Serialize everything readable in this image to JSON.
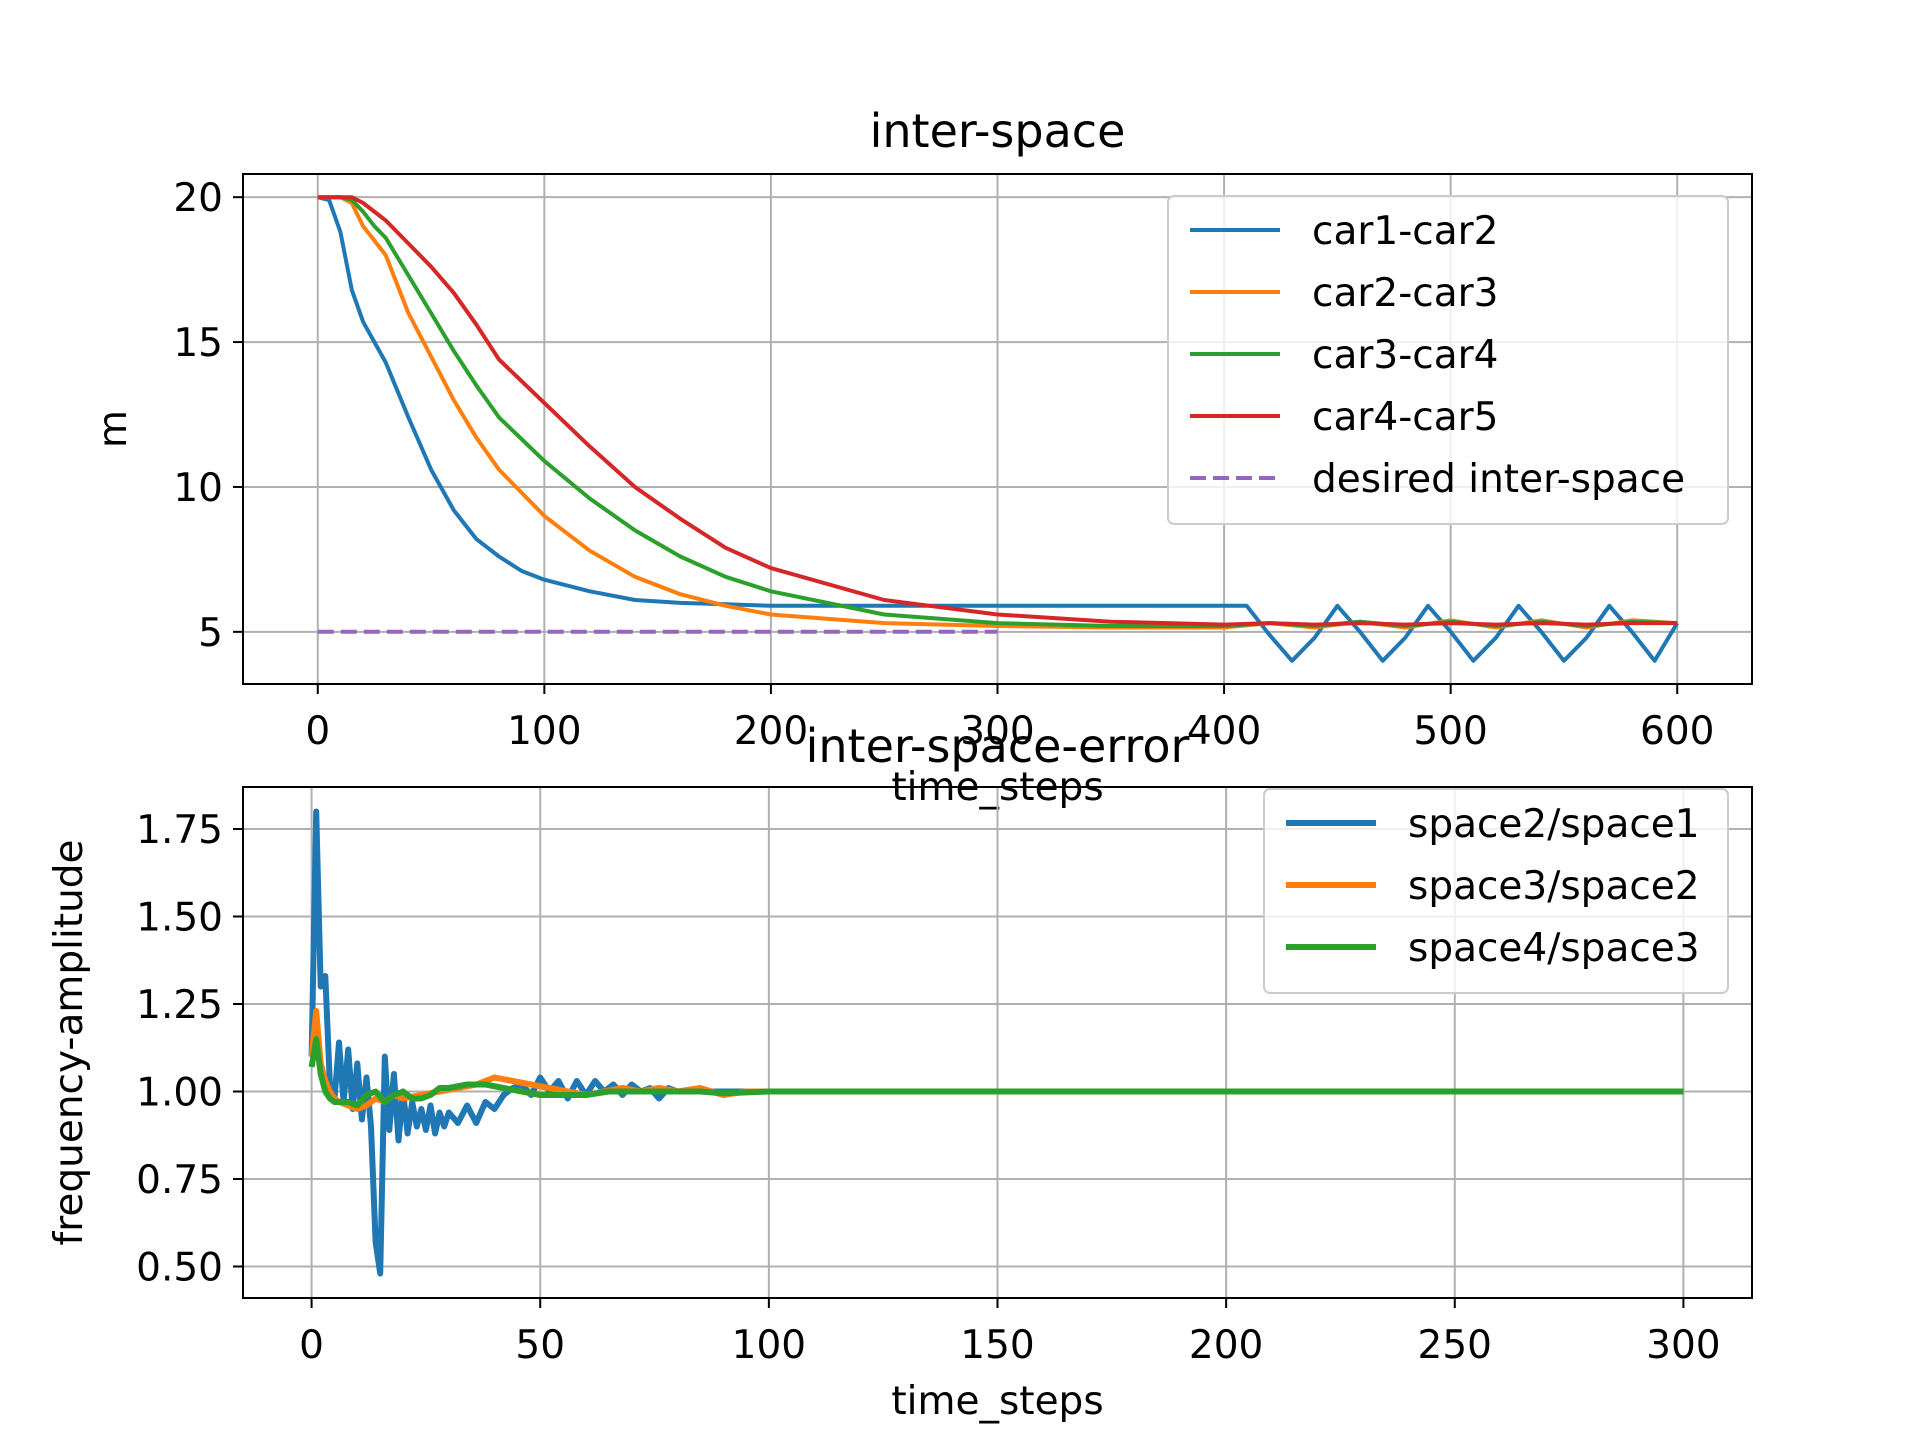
{
  "chart_data": [
    {
      "type": "line",
      "title": "inter-space",
      "xlabel": "time_steps",
      "ylabel": "m",
      "xlim": [
        -33,
        633
      ],
      "ylim": [
        3.2,
        20.8
      ],
      "xticks": [
        0,
        100,
        200,
        300,
        400,
        500,
        600
      ],
      "yticks": [
        5,
        10,
        15,
        20
      ],
      "grid": true,
      "legend_position": "top-right",
      "colors": {
        "car1-car2": "#1f77b4",
        "car2-car3": "#ff7f0e",
        "car3-car4": "#2ca02c",
        "car4-car5": "#d62728",
        "desired inter-space": "#9467bd"
      },
      "series": [
        {
          "name": "car1-car2",
          "color": "#1f77b4",
          "x": [
            0,
            5,
            10,
            15,
            20,
            30,
            40,
            50,
            60,
            70,
            80,
            90,
            100,
            120,
            140,
            160,
            180,
            200,
            250,
            300,
            350,
            400,
            410,
            420,
            430,
            440,
            450,
            460,
            470,
            480,
            490,
            500,
            510,
            520,
            530,
            540,
            550,
            560,
            570,
            580,
            590,
            600
          ],
          "y": [
            20,
            19.9,
            18.8,
            16.8,
            15.7,
            14.3,
            12.4,
            10.6,
            9.2,
            8.2,
            7.6,
            7.1,
            6.8,
            6.4,
            6.1,
            6.0,
            5.95,
            5.9,
            5.9,
            5.9,
            5.9,
            5.9,
            5.9,
            4.9,
            4.0,
            4.8,
            5.9,
            5.0,
            4.0,
            4.8,
            5.9,
            5.0,
            4.0,
            4.8,
            5.9,
            5.0,
            4.0,
            4.8,
            5.9,
            5.0,
            4.0,
            5.3
          ]
        },
        {
          "name": "car2-car3",
          "color": "#ff7f0e",
          "x": [
            0,
            10,
            15,
            20,
            25,
            30,
            40,
            50,
            60,
            70,
            80,
            100,
            120,
            140,
            160,
            180,
            200,
            250,
            300,
            350,
            400,
            420,
            440,
            460,
            480,
            500,
            520,
            540,
            560,
            580,
            600
          ],
          "y": [
            20,
            20,
            19.8,
            19.0,
            18.5,
            18.0,
            16.0,
            14.5,
            13.0,
            11.7,
            10.6,
            9.0,
            7.8,
            6.9,
            6.3,
            5.9,
            5.6,
            5.3,
            5.2,
            5.15,
            5.15,
            5.3,
            5.15,
            5.35,
            5.15,
            5.4,
            5.15,
            5.4,
            5.15,
            5.4,
            5.3
          ]
        },
        {
          "name": "car3-car4",
          "color": "#2ca02c",
          "x": [
            0,
            10,
            15,
            20,
            25,
            30,
            40,
            50,
            60,
            70,
            80,
            100,
            120,
            140,
            160,
            180,
            200,
            250,
            300,
            350,
            400,
            420,
            440,
            460,
            480,
            500,
            520,
            540,
            560,
            580,
            600
          ],
          "y": [
            20,
            20,
            19.9,
            19.5,
            19.0,
            18.6,
            17.3,
            16.0,
            14.7,
            13.5,
            12.4,
            10.9,
            9.6,
            8.5,
            7.6,
            6.9,
            6.4,
            5.6,
            5.3,
            5.2,
            5.2,
            5.3,
            5.2,
            5.35,
            5.2,
            5.35,
            5.2,
            5.35,
            5.2,
            5.35,
            5.3
          ]
        },
        {
          "name": "car4-car5",
          "color": "#d62728",
          "x": [
            0,
            10,
            15,
            20,
            30,
            40,
            50,
            60,
            70,
            80,
            100,
            120,
            140,
            160,
            180,
            200,
            250,
            300,
            350,
            400,
            420,
            440,
            460,
            480,
            500,
            520,
            540,
            560,
            580,
            600
          ],
          "y": [
            20,
            20,
            20,
            19.8,
            19.2,
            18.4,
            17.6,
            16.7,
            15.6,
            14.4,
            12.9,
            11.4,
            10.0,
            8.9,
            7.9,
            7.2,
            6.1,
            5.6,
            5.35,
            5.25,
            5.3,
            5.25,
            5.3,
            5.25,
            5.3,
            5.25,
            5.3,
            5.25,
            5.3,
            5.3
          ]
        },
        {
          "name": "desired inter-space",
          "color": "#9467bd",
          "style": "dashed",
          "x": [
            0,
            300
          ],
          "y": [
            5,
            5
          ]
        }
      ]
    },
    {
      "type": "line",
      "title": "inter-space-error",
      "xlabel": "time_steps",
      "ylabel": "frequency-amplitude",
      "xlim": [
        -15,
        315
      ],
      "ylim": [
        0.41,
        1.87
      ],
      "xticks": [
        0,
        50,
        100,
        150,
        200,
        250,
        300
      ],
      "yticks": [
        "0.50",
        "0.75",
        "1.00",
        "1.25",
        "1.50",
        "1.75"
      ],
      "grid": true,
      "legend_position": "top-right",
      "colors": {
        "space2/space1": "#1f77b4",
        "space3/space2": "#ff7f0e",
        "space4/space3": "#2ca02c"
      },
      "series": [
        {
          "name": "space2/space1",
          "color": "#1f77b4",
          "x": [
            0,
            1,
            2,
            3,
            4,
            5,
            6,
            7,
            8,
            9,
            10,
            11,
            12,
            13,
            14,
            15,
            16,
            17,
            18,
            19,
            20,
            21,
            22,
            23,
            24,
            25,
            26,
            27,
            28,
            29,
            30,
            32,
            34,
            36,
            38,
            40,
            42,
            44,
            46,
            48,
            50,
            52,
            54,
            56,
            58,
            60,
            62,
            64,
            66,
            68,
            70,
            72,
            74,
            76,
            78,
            80,
            85,
            90,
            95,
            100,
            110,
            120,
            130,
            300
          ],
          "y": [
            1.1,
            1.8,
            1.3,
            1.33,
            1.02,
            0.98,
            1.14,
            0.97,
            1.12,
            0.95,
            1.08,
            0.92,
            1.04,
            0.9,
            0.57,
            0.48,
            1.1,
            0.89,
            1.05,
            0.86,
            1.0,
            0.88,
            0.97,
            0.9,
            0.95,
            0.89,
            0.96,
            0.88,
            0.94,
            0.9,
            0.94,
            0.91,
            0.96,
            0.91,
            0.97,
            0.95,
            0.99,
            1.01,
            1.02,
            0.99,
            1.04,
            1.0,
            1.03,
            0.98,
            1.03,
            0.99,
            1.03,
            1.0,
            1.02,
            0.99,
            1.02,
            1.0,
            1.01,
            0.98,
            1.01,
            1.0,
            1.0,
            1.0,
            1.0,
            1.0,
            1.0,
            1.0,
            1.0,
            1.0
          ]
        },
        {
          "name": "space3/space2",
          "color": "#ff7f0e",
          "x": [
            0,
            1,
            2,
            3,
            4,
            5,
            6,
            8,
            10,
            12,
            14,
            16,
            18,
            20,
            24,
            28,
            32,
            36,
            40,
            44,
            48,
            52,
            56,
            60,
            64,
            68,
            72,
            76,
            80,
            85,
            90,
            95,
            100,
            110,
            120,
            300
          ],
          "y": [
            1.1,
            1.23,
            1.08,
            1.03,
            1.0,
            0.98,
            0.97,
            0.96,
            0.95,
            0.96,
            0.98,
            0.97,
            0.99,
            0.98,
            0.99,
            1.0,
            1.01,
            1.02,
            1.04,
            1.03,
            1.02,
            1.01,
            1.0,
            0.99,
            1.0,
            1.01,
            1.0,
            1.01,
            1.0,
            1.01,
            0.99,
            1.0,
            1.0,
            1.0,
            1.0,
            1.0
          ]
        },
        {
          "name": "space4/space3",
          "color": "#2ca02c",
          "x": [
            0,
            1,
            2,
            3,
            4,
            5,
            6,
            8,
            10,
            12,
            14,
            16,
            18,
            20,
            22,
            24,
            26,
            28,
            30,
            34,
            38,
            42,
            46,
            50,
            55,
            60,
            65,
            70,
            75,
            80,
            85,
            90,
            100,
            110,
            300
          ],
          "y": [
            1.07,
            1.15,
            1.05,
            1.0,
            0.98,
            0.97,
            0.97,
            0.97,
            0.96,
            0.99,
            1.0,
            0.97,
            0.99,
            1.0,
            0.98,
            0.98,
            0.99,
            1.01,
            1.01,
            1.02,
            1.02,
            1.01,
            1.0,
            0.99,
            0.99,
            0.99,
            1.0,
            1.0,
            1.0,
            1.0,
            1.0,
            0.995,
            1.0,
            1.0,
            1.0
          ]
        }
      ]
    }
  ]
}
